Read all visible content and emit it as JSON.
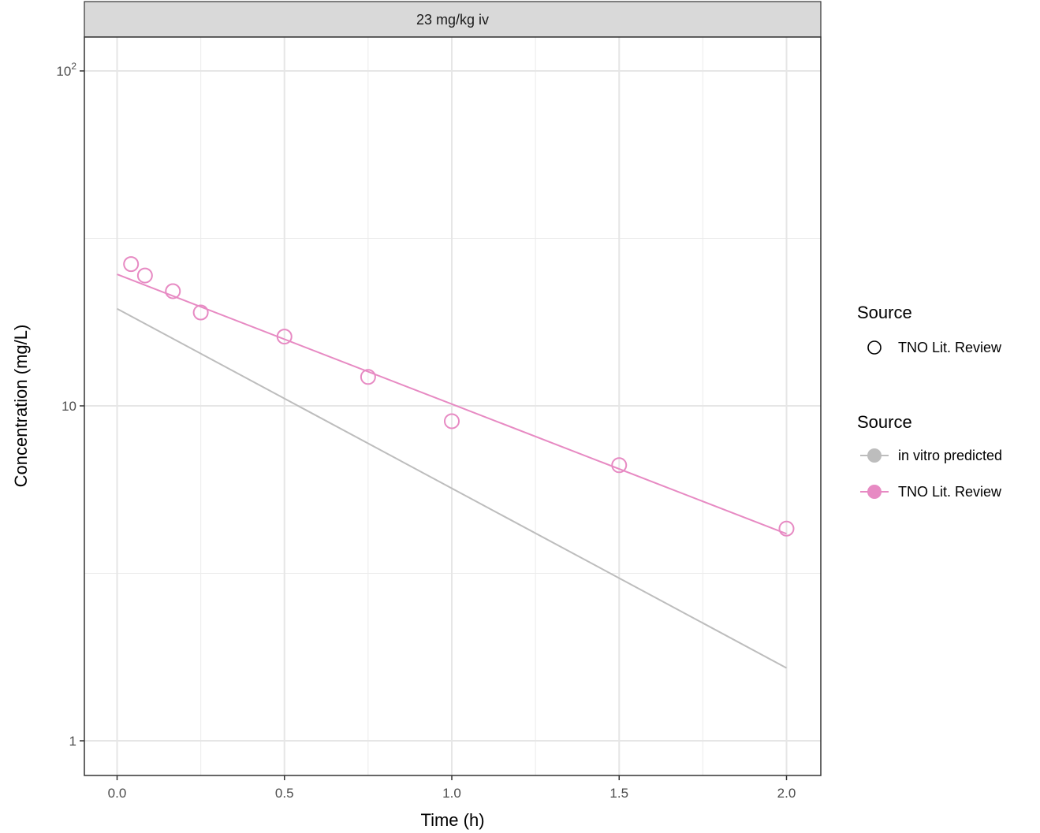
{
  "chart_data": {
    "type": "line",
    "facet_label": "23 mg/kg iv",
    "xlabel": "Time (h)",
    "ylabel": "Concentration (mg/L)",
    "x_scale": "linear",
    "y_scale": "log10",
    "xlim": [
      -0.1,
      2.1
    ],
    "ylim": [
      0.8,
      130
    ],
    "x_ticks": [
      {
        "value": 0.0,
        "label": "0.0"
      },
      {
        "value": 0.5,
        "label": "0.5"
      },
      {
        "value": 1.0,
        "label": "1.0"
      },
      {
        "value": 1.5,
        "label": "1.5"
      },
      {
        "value": 2.0,
        "label": "2.0"
      }
    ],
    "y_ticks": [
      {
        "value": 1,
        "label": "1",
        "base": "",
        "exp": ""
      },
      {
        "value": 10,
        "label": "10",
        "base": "",
        "exp": ""
      },
      {
        "value": 100,
        "label": "",
        "base": "10",
        "exp": "2"
      }
    ],
    "y_minor_gridlines": [
      3.1623,
      31.623
    ],
    "x_minor_gridlines": [
      0.25,
      0.75,
      1.25,
      1.75
    ],
    "grid": true,
    "legend_position": "right",
    "lines": [
      {
        "name": "in vitro predicted",
        "color": "#bdbdbd",
        "x": [
          0,
          2
        ],
        "y": [
          19.5,
          1.65
        ]
      },
      {
        "name": "TNO Lit. Review",
        "color": "#e78ac3",
        "x": [
          0,
          2
        ],
        "y": [
          24.7,
          4.15
        ]
      }
    ],
    "points": {
      "name": "TNO Lit. Review",
      "color": "#e78ac3",
      "x": [
        0.0417,
        0.0833,
        0.1667,
        0.25,
        0.5,
        0.75,
        1.0,
        1.5,
        2.0
      ],
      "y": [
        26.5,
        24.5,
        22.0,
        19.0,
        16.1,
        12.2,
        9.0,
        6.65,
        4.3
      ]
    },
    "legends": [
      {
        "title": "Source",
        "entries": [
          {
            "label": "TNO Lit. Review",
            "symbol": "open-circle",
            "color": "#000000"
          }
        ]
      },
      {
        "title": "Source",
        "entries": [
          {
            "label": "in vitro predicted",
            "symbol": "line-dot",
            "color": "#bdbdbd"
          },
          {
            "label": "TNO Lit. Review",
            "symbol": "line-dot",
            "color": "#e78ac3"
          }
        ]
      }
    ]
  }
}
